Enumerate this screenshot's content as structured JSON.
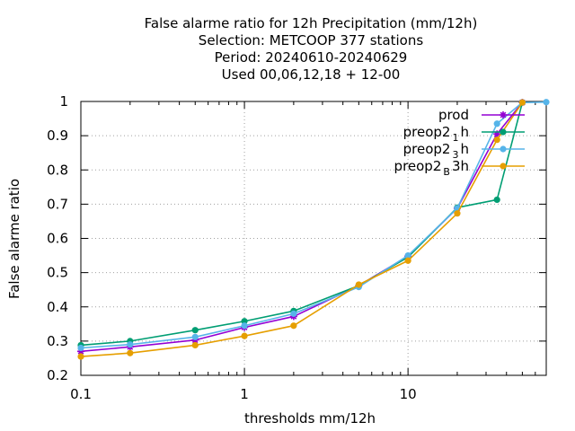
{
  "chart_data": {
    "type": "line",
    "title_lines": [
      "False alarme ratio  for 12h Precipitation (mm/12h)",
      "Selection: METCOOP    377 stations",
      "Period: 20240610-20240629",
      "Used  00,06,12,18 + 12-00"
    ],
    "xlabel": "thresholds mm/12h",
    "ylabel": "False alarme ratio",
    "x_scale": "log",
    "xlim": [
      0.1,
      70
    ],
    "ylim": [
      0.2,
      1.0
    ],
    "grid": true,
    "legend_position": "top-right",
    "x_ticks": [
      {
        "value": 0.1,
        "label": "0.1"
      },
      {
        "value": 1,
        "label": "1"
      },
      {
        "value": 10,
        "label": "10"
      }
    ],
    "y_ticks": [
      {
        "value": 0.2,
        "label": "0.2"
      },
      {
        "value": 0.3,
        "label": "0.3"
      },
      {
        "value": 0.4,
        "label": "0.4"
      },
      {
        "value": 0.5,
        "label": "0.5"
      },
      {
        "value": 0.6,
        "label": "0.6"
      },
      {
        "value": 0.7,
        "label": "0.7"
      },
      {
        "value": 0.8,
        "label": "0.8"
      },
      {
        "value": 0.9,
        "label": "0.9"
      },
      {
        "value": 1.0,
        "label": "1"
      }
    ],
    "x": [
      0.1,
      0.2,
      0.5,
      1,
      2,
      5,
      10,
      20,
      35,
      50,
      70
    ],
    "series": [
      {
        "legend_base": "prod",
        "legend_sub": "",
        "legend_suffix": "",
        "color": "#9400d3",
        "marker": "star",
        "values": [
          0.27,
          0.283,
          0.303,
          0.34,
          0.372,
          0.462,
          0.548,
          0.688,
          0.905,
          0.997,
          null
        ]
      },
      {
        "legend_base": "preop2",
        "legend_sub": "1",
        "legend_suffix": "h",
        "color": "#009e73",
        "marker": "circle",
        "values": [
          0.288,
          0.3,
          0.332,
          0.358,
          0.388,
          0.462,
          0.545,
          0.69,
          0.713,
          0.997,
          null
        ]
      },
      {
        "legend_base": "preop2",
        "legend_sub": "3",
        "legend_suffix": "h",
        "color": "#56b4e9",
        "marker": "circle",
        "values": [
          0.28,
          0.29,
          0.312,
          0.345,
          0.38,
          0.458,
          0.55,
          0.688,
          0.935,
          0.997,
          0.998
        ]
      },
      {
        "legend_base": "preop2",
        "legend_sub": "B",
        "legend_suffix": "3h",
        "color": "#e69f00",
        "marker": "circle",
        "values": [
          0.255,
          0.265,
          0.288,
          0.315,
          0.345,
          0.465,
          0.535,
          0.673,
          0.888,
          0.997,
          null
        ]
      }
    ]
  }
}
